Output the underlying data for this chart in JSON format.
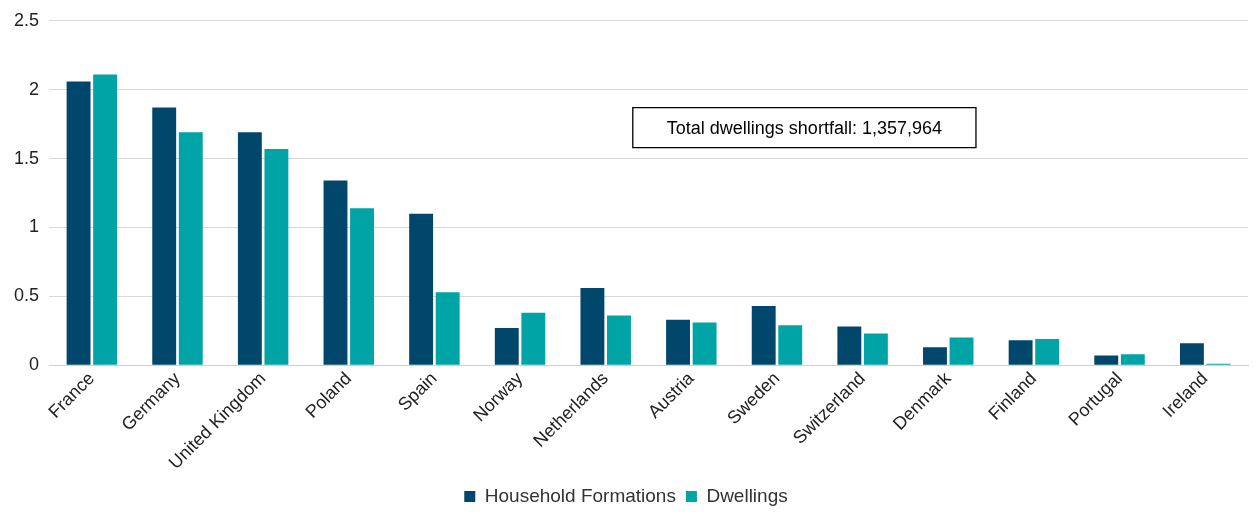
{
  "chart_data": {
    "type": "bar",
    "categories": [
      "France",
      "Germany",
      "United Kingdom",
      "Poland",
      "Spain",
      "Norway",
      "Netherlands",
      "Austria",
      "Sweden",
      "Switzerland",
      "Denmark",
      "Finland",
      "Portugal",
      "Ireland"
    ],
    "series": [
      {
        "name": "Household Formations",
        "color": "#00476b",
        "values": [
          2.06,
          1.87,
          1.69,
          1.34,
          1.1,
          0.27,
          0.56,
          0.33,
          0.43,
          0.28,
          0.13,
          0.18,
          0.07,
          0.16
        ]
      },
      {
        "name": "Dwellings",
        "color": "#00a3a6",
        "values": [
          2.11,
          1.69,
          1.57,
          1.14,
          0.53,
          0.38,
          0.36,
          0.31,
          0.29,
          0.23,
          0.2,
          0.19,
          0.08,
          0.01
        ]
      }
    ],
    "ylim": [
      0,
      2.5
    ],
    "yticks": [
      0,
      0.5,
      1,
      1.5,
      2,
      2.5
    ],
    "grid": "y",
    "legend": "bottom",
    "annotations": [
      "Total dwellings shortfall: 1,357,964"
    ]
  }
}
